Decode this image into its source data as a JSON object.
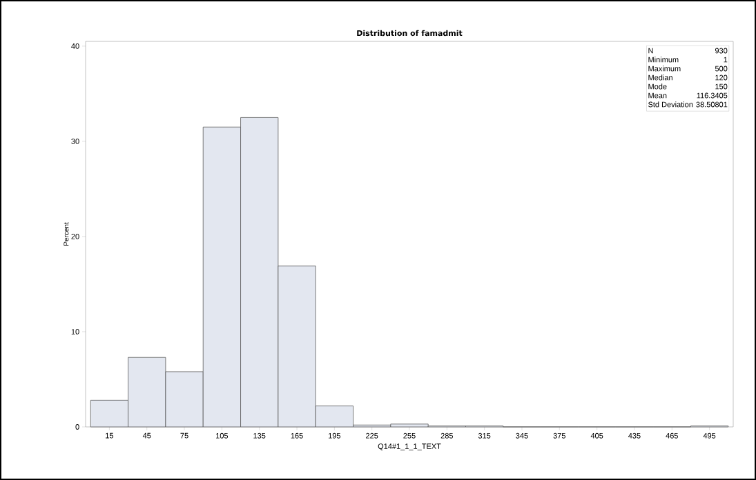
{
  "chart_data": {
    "type": "histogram",
    "title": "Distribution of famadmit",
    "xlabel": "Q14#1_1_1_TEXT",
    "ylabel": "Percent",
    "bins": [
      0,
      30,
      60,
      90,
      120,
      150,
      180,
      210,
      240,
      270,
      300,
      330,
      360,
      390,
      420,
      450,
      480,
      510
    ],
    "values": [
      2.8,
      7.3,
      5.8,
      31.5,
      32.5,
      16.9,
      2.2,
      0.2,
      0.3,
      0.1,
      0.1,
      0,
      0,
      0,
      0,
      0,
      0.1
    ],
    "color": "#e3e7f0",
    "xlim": [
      -4,
      514
    ],
    "ylim": [
      0,
      40.5
    ],
    "xticks": [
      15,
      45,
      75,
      105,
      135,
      165,
      195,
      225,
      255,
      285,
      315,
      345,
      375,
      405,
      435,
      465,
      495
    ],
    "yticks": [
      0,
      10,
      20,
      30,
      40
    ],
    "grid": false,
    "annotations": [
      "N",
      "930",
      "Minimum",
      "1",
      "Maximum",
      "500",
      "Median",
      "120",
      "Mode",
      "150",
      "Mean",
      "116.3405",
      "Std Deviation",
      "38.50801"
    ]
  }
}
